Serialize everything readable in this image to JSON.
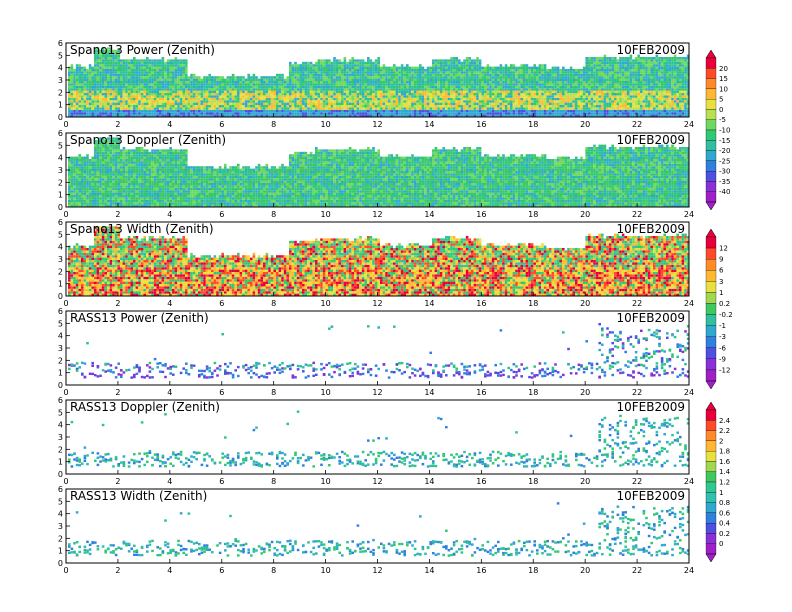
{
  "figure": {
    "date_label": "10FEB2009"
  },
  "chart_data": [
    {
      "type": "heatmap",
      "title": "Spano13 Power (Zenith)",
      "x_ticks": [
        0,
        2,
        4,
        6,
        8,
        10,
        12,
        14,
        16,
        18,
        20,
        22,
        24
      ],
      "y_ticks": [
        0,
        1,
        2,
        3,
        4,
        5,
        6
      ],
      "xlim": [
        0,
        24
      ],
      "ylim": [
        0,
        6
      ],
      "date": "10FEB2009",
      "colorbar": "power"
    },
    {
      "type": "heatmap",
      "title": "Spano13 Doppler (Zenith)",
      "x_ticks": [
        0,
        2,
        4,
        6,
        8,
        10,
        12,
        14,
        16,
        18,
        20,
        22,
        24
      ],
      "y_ticks": [
        0,
        1,
        2,
        3,
        4,
        5,
        6
      ],
      "xlim": [
        0,
        24
      ],
      "ylim": [
        0,
        6
      ],
      "date": "10FEB2009",
      "colorbar": "power"
    },
    {
      "type": "heatmap",
      "title": "Spano13 Width (Zenith)",
      "x_ticks": [
        0,
        2,
        4,
        6,
        8,
        10,
        12,
        14,
        16,
        18,
        20,
        22,
        24
      ],
      "y_ticks": [
        0,
        1,
        2,
        3,
        4,
        5,
        6
      ],
      "xlim": [
        0,
        24
      ],
      "ylim": [
        0,
        6
      ],
      "date": "10FEB2009",
      "colorbar": "doppler"
    },
    {
      "type": "heatmap",
      "title": "RASS13 Power (Zenith)",
      "x_ticks": [
        0,
        2,
        4,
        6,
        8,
        10,
        12,
        14,
        16,
        18,
        20,
        22,
        24
      ],
      "y_ticks": [
        0,
        1,
        2,
        3,
        4,
        5,
        6
      ],
      "xlim": [
        0,
        24
      ],
      "ylim": [
        0,
        6
      ],
      "date": "10FEB2009",
      "colorbar": "doppler"
    },
    {
      "type": "heatmap",
      "title": "RASS13 Doppler (Zenith)",
      "x_ticks": [
        0,
        2,
        4,
        6,
        8,
        10,
        12,
        14,
        16,
        18,
        20,
        22,
        24
      ],
      "y_ticks": [
        0,
        1,
        2,
        3,
        4,
        5,
        6
      ],
      "xlim": [
        0,
        24
      ],
      "ylim": [
        0,
        6
      ],
      "date": "10FEB2009",
      "colorbar": "width"
    },
    {
      "type": "heatmap",
      "title": "RASS13 Width (Zenith)",
      "x_ticks": [
        0,
        2,
        4,
        6,
        8,
        10,
        12,
        14,
        16,
        18,
        20,
        22,
        24
      ],
      "y_ticks": [
        0,
        1,
        2,
        3,
        4,
        5,
        6
      ],
      "xlim": [
        0,
        24
      ],
      "ylim": [
        0,
        6
      ],
      "date": "10FEB2009",
      "colorbar": "width"
    }
  ],
  "colorbars": {
    "power": {
      "labels": [
        "20",
        "15",
        "10",
        "5",
        "0",
        "-5",
        "-10",
        "-15",
        "-20",
        "-25",
        "-30",
        "-35",
        "-40"
      ],
      "colors": [
        "#e8003c",
        "#ff4a2a",
        "#ff8a2a",
        "#ffb830",
        "#e8e040",
        "#b8e050",
        "#6fd860",
        "#30c870",
        "#30c0a0",
        "#30a8d0",
        "#3080e0",
        "#5050e0",
        "#8a30d8",
        "#a020c8"
      ]
    },
    "doppler": {
      "labels": [
        "12",
        "9",
        "6",
        "3",
        "1",
        "0.2",
        "-0.2",
        "-1",
        "-3",
        "-6",
        "-9",
        "-12"
      ],
      "colors": [
        "#e8003c",
        "#ff4a2a",
        "#ff8a2a",
        "#ffb830",
        "#e8e040",
        "#a0d850",
        "#40c860",
        "#30c0a0",
        "#30a8d0",
        "#3080e0",
        "#5050e0",
        "#8a30d8",
        "#a020c8"
      ]
    },
    "width": {
      "labels": [
        "2.4",
        "2.2",
        "2",
        "1.8",
        "1.6",
        "1.4",
        "1.2",
        "1",
        "0.8",
        "0.6",
        "0.4",
        "0.2",
        "0"
      ],
      "colors": [
        "#e8003c",
        "#ff4a2a",
        "#ff8a2a",
        "#ffb830",
        "#e8e040",
        "#a0d850",
        "#40c860",
        "#30c890",
        "#30c0b0",
        "#30a8d0",
        "#3080e0",
        "#5050e0",
        "#8a30d8",
        "#a020c8"
      ]
    }
  }
}
